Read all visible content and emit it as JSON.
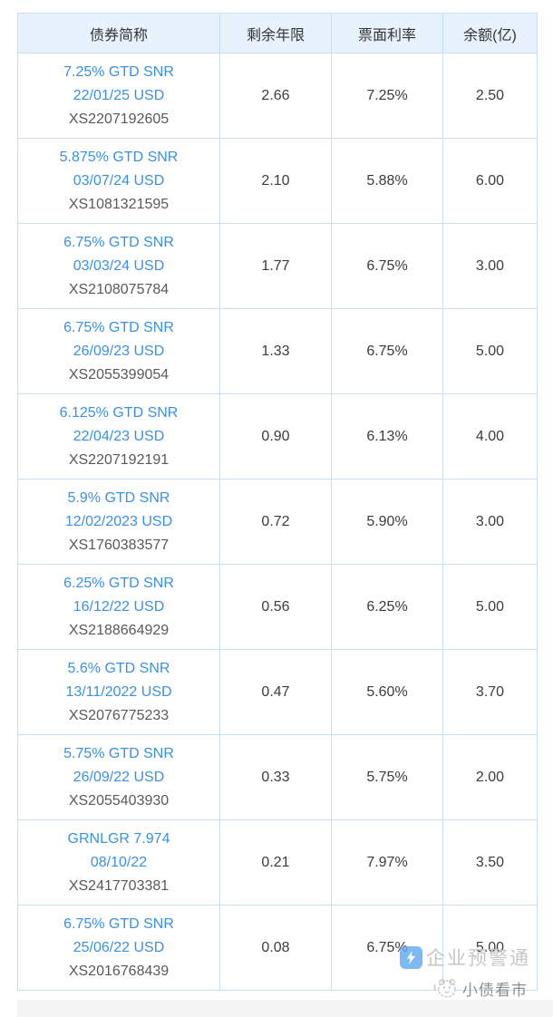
{
  "table": {
    "headers": [
      "债券简称",
      "剩余年限",
      "票面利率",
      "余额(亿)"
    ],
    "rows": [
      {
        "name1": "7.25% GTD SNR",
        "name2": "22/01/25 USD",
        "isin": "XS2207192605",
        "tenor": "2.66",
        "coupon": "7.25%",
        "balance": "2.50"
      },
      {
        "name1": "5.875% GTD SNR",
        "name2": "03/07/24 USD",
        "isin": "XS1081321595",
        "tenor": "2.10",
        "coupon": "5.88%",
        "balance": "6.00"
      },
      {
        "name1": "6.75% GTD SNR",
        "name2": "03/03/24 USD",
        "isin": "XS2108075784",
        "tenor": "1.77",
        "coupon": "6.75%",
        "balance": "3.00"
      },
      {
        "name1": "6.75% GTD SNR",
        "name2": "26/09/23 USD",
        "isin": "XS2055399054",
        "tenor": "1.33",
        "coupon": "6.75%",
        "balance": "5.00"
      },
      {
        "name1": "6.125% GTD SNR",
        "name2": "22/04/23 USD",
        "isin": "XS2207192191",
        "tenor": "0.90",
        "coupon": "6.13%",
        "balance": "4.00"
      },
      {
        "name1": "5.9% GTD SNR",
        "name2": "12/02/2023 USD",
        "isin": "XS1760383577",
        "tenor": "0.72",
        "coupon": "5.90%",
        "balance": "3.00"
      },
      {
        "name1": "6.25% GTD SNR",
        "name2": "16/12/22 USD",
        "isin": "XS2188664929",
        "tenor": "0.56",
        "coupon": "6.25%",
        "balance": "5.00"
      },
      {
        "name1": "5.6% GTD SNR",
        "name2": "13/11/2022 USD",
        "isin": "XS2076775233",
        "tenor": "0.47",
        "coupon": "5.60%",
        "balance": "3.70"
      },
      {
        "name1": "5.75% GTD SNR",
        "name2": "26/09/22 USD",
        "isin": "XS2055403930",
        "tenor": "0.33",
        "coupon": "5.75%",
        "balance": "2.00"
      },
      {
        "name1": "GRNLGR 7.974",
        "name2": "08/10/22",
        "isin": "XS2417703381",
        "tenor": "0.21",
        "coupon": "7.97%",
        "balance": "3.50"
      },
      {
        "name1": "6.75% GTD SNR",
        "name2": "25/06/22 USD",
        "isin": "XS2016768439",
        "tenor": "0.08",
        "coupon": "6.75%",
        "balance": "5.00"
      }
    ]
  },
  "watermarks": {
    "vendor_label": "企业预警通",
    "channel_label": "小债看市"
  },
  "colors": {
    "header_bg": "#e8f2fc",
    "table_border": "#c9dff4",
    "bond_link": "#3a91e4",
    "isin_text": "#595959",
    "number_text": "#3c3c3c",
    "vendor_watermark_text": "#c6c6c6",
    "vendor_icon_bg": "#5ea8ee",
    "channel_watermark_text": "#8d8d8d"
  }
}
